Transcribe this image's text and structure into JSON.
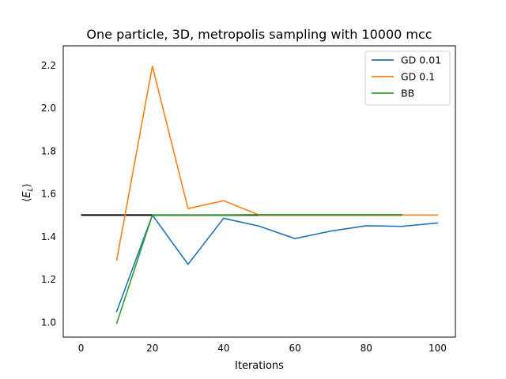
{
  "chart_data": {
    "type": "line",
    "title": "One particle, 3D, metropolis sampling with 10000 mcc",
    "xlabel": "Iterations",
    "ylabel": "⟨E_L⟩",
    "xlim": [
      -5,
      105
    ],
    "ylim": [
      0.93,
      2.29
    ],
    "xticks": [
      0,
      20,
      40,
      60,
      80,
      100
    ],
    "yticks": [
      1.0,
      1.2,
      1.4,
      1.6,
      1.8,
      2.0,
      2.2
    ],
    "grid": false,
    "legend_position": "top-right",
    "reference_line": {
      "x": [
        0,
        90
      ],
      "y": 1.5,
      "color": "#000000"
    },
    "series": [
      {
        "name": "GD 0.01",
        "color": "#1f77b4",
        "x": [
          10,
          20,
          30,
          40,
          50,
          60,
          70,
          80,
          90,
          100
        ],
        "y": [
          1.05,
          1.5,
          1.27,
          1.485,
          1.448,
          1.39,
          1.425,
          1.45,
          1.447,
          1.463
        ]
      },
      {
        "name": "GD 0.1",
        "color": "#ff7f0e",
        "x": [
          10,
          20,
          30,
          40,
          50,
          60,
          70,
          80,
          90,
          100
        ],
        "y": [
          1.29,
          2.195,
          1.53,
          1.567,
          1.5,
          1.5,
          1.5,
          1.5,
          1.5,
          1.5
        ]
      },
      {
        "name": "BB",
        "color": "#2ca02c",
        "x": [
          10,
          20,
          30,
          40,
          50,
          60,
          70,
          80,
          90
        ],
        "y": [
          0.995,
          1.5,
          1.5,
          1.5,
          1.502,
          1.502,
          1.502,
          1.502,
          1.502
        ]
      }
    ]
  }
}
